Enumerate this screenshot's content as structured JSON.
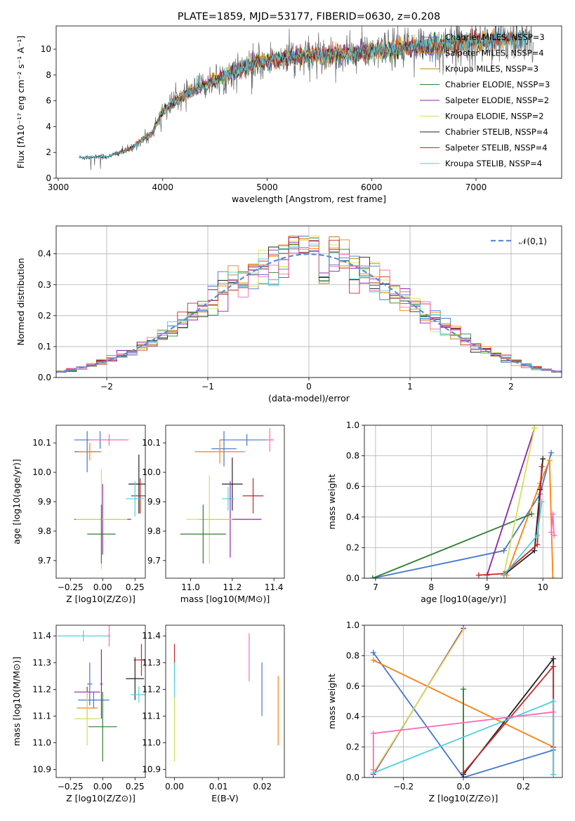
{
  "colors": {
    "Chabrier MILES": "#4477cc",
    "Salpeter MILES": "#ff7f0e",
    "Kroupa MILES": "#b8860b",
    "Chabrier ELODIE": "#2e7d32",
    "Salpeter ELODIE": "#8e24aa",
    "Kroupa ELODIE": "#d4e157",
    "Chabrier STELIB": "#222222",
    "Salpeter STELIB": "#c62828",
    "Kroupa STELIB": "#4dd0e1",
    "data": "#666666",
    "normal": "#5b8bd9",
    "pink": "#ff69b4"
  },
  "chart_data": [
    {
      "id": "spectrum",
      "type": "line",
      "title": "PLATE=1859, MJD=53177, FIBERID=0630, z=0.208",
      "xlabel": "wavelength [Angstrom, rest frame]",
      "ylabel": "Flux [fλ10⁻¹⁷ erg cm⁻² s⁻¹ A⁻¹]",
      "xlim": [
        2980,
        7820
      ],
      "ylim": [
        0,
        11.8
      ],
      "xticks": [
        3000,
        4000,
        5000,
        6000,
        7000
      ],
      "yticks": [
        0,
        2,
        4,
        6,
        8,
        10
      ],
      "legend_position": "upper right",
      "legend": [
        "Chabrier MILES, NSSP=3",
        "Salpeter MILES, NSSP=4",
        "Kroupa MILES, NSSP=3",
        "Chabrier ELODIE, NSSP=3",
        "Salpeter ELODIE, NSSP=2",
        "Kroupa ELODIE, NSSP=2",
        "Chabrier STELIB, NSSP=4",
        "Salpeter STELIB, NSSP=4",
        "Kroupa STELIB, NSSP=4"
      ],
      "continuum": {
        "x": [
          3200,
          3500,
          3550,
          3700,
          3800,
          3900,
          4000,
          4100,
          4300,
          4500,
          4700,
          4900,
          5100,
          5300,
          5500,
          5700,
          5900,
          6100,
          6300,
          6500,
          6700,
          6900,
          7100,
          7300,
          7500
        ],
        "y": [
          1.6,
          1.7,
          1.9,
          2.3,
          3.0,
          3.5,
          5.2,
          5.9,
          6.8,
          7.6,
          8.3,
          8.9,
          9.3,
          9.4,
          9.5,
          9.6,
          9.7,
          9.9,
          10.1,
          10.3,
          10.4,
          10.5,
          10.7,
          10.8,
          10.9
        ]
      }
    },
    {
      "id": "residuals",
      "type": "histogram",
      "xlabel": "(data-model)/error",
      "ylabel": "Normed distribution",
      "xlim": [
        -2.5,
        2.5
      ],
      "ylim": [
        0,
        0.49
      ],
      "xticks": [
        -2,
        -1,
        0,
        1,
        2
      ],
      "yticks": [
        0.0,
        0.1,
        0.2,
        0.3,
        0.4
      ],
      "grid": true,
      "legend": [
        "𝒩(0,1)"
      ],
      "bin_width": 0.1,
      "reference_curve": "standard normal pdf"
    },
    {
      "id": "age_vs_Z",
      "type": "scatter",
      "xlabel": "Z [log10(Z/Z⊙)]",
      "ylabel": "age  [log10(age/yr)]",
      "xlim": [
        -0.36,
        0.33
      ],
      "ylim": [
        9.64,
        10.16
      ],
      "xticks": [
        -0.25,
        0.0,
        0.25
      ],
      "xticklabels": [
        "−0.25",
        "0.00",
        "0.25"
      ],
      "yticks": [
        9.7,
        9.8,
        9.9,
        10.0,
        10.1
      ],
      "points": [
        {
          "x": -0.12,
          "y": 10.07,
          "xerr": 0.1,
          "yerr": 0.07,
          "model": "Chabrier MILES"
        },
        {
          "x": -0.1,
          "y": 10.07,
          "xerr": 0.09,
          "yerr": 0.03,
          "model": "Salpeter MILES"
        },
        {
          "x": -0.02,
          "y": 10.11,
          "xerr": 0.2,
          "yerr": 0.03,
          "model": "Chabrier MILES"
        },
        {
          "x": 0.05,
          "y": 10.11,
          "xerr": 0.15,
          "yerr": 0.02,
          "model": "pink"
        },
        {
          "x": 0.28,
          "y": 9.96,
          "xerr": 0.08,
          "yerr": 0.1,
          "model": "Chabrier STELIB"
        },
        {
          "x": 0.29,
          "y": 9.92,
          "xerr": 0.07,
          "yerr": 0.06,
          "model": "Salpeter STELIB"
        },
        {
          "x": 0.25,
          "y": 9.91,
          "xerr": 0.07,
          "yerr": 0.06,
          "model": "Kroupa STELIB"
        },
        {
          "x": 0.0,
          "y": 9.84,
          "xerr": 0.22,
          "yerr": 0.12,
          "model": "Salpeter ELODIE"
        },
        {
          "x": -0.01,
          "y": 9.84,
          "xerr": 0.2,
          "yerr": 0.17,
          "model": "Kroupa ELODIE"
        },
        {
          "x": -0.01,
          "y": 9.79,
          "xerr": 0.11,
          "yerr": 0.1,
          "model": "Chabrier ELODIE"
        }
      ]
    },
    {
      "id": "age_vs_mass",
      "type": "scatter",
      "xlabel": "mass [log10(M/M⊙)]",
      "xlim": [
        10.88,
        11.45
      ],
      "ylim": [
        9.64,
        10.16
      ],
      "xticks": [
        11.0,
        11.2,
        11.4
      ],
      "xticklabels": [
        "11.0",
        "11.2",
        "11.4"
      ],
      "yticks": [
        9.7,
        9.8,
        9.9,
        10.0,
        10.1
      ],
      "points": [
        {
          "x": 11.16,
          "y": 10.08,
          "xerr": 0.06,
          "yerr": 0.06,
          "model": "Chabrier MILES"
        },
        {
          "x": 11.14,
          "y": 10.07,
          "xerr": 0.12,
          "yerr": 0.04,
          "model": "Salpeter MILES"
        },
        {
          "x": 11.27,
          "y": 10.11,
          "xerr": 0.13,
          "yerr": 0.02,
          "model": "Chabrier MILES"
        },
        {
          "x": 11.38,
          "y": 10.11,
          "xerr": 0.02,
          "yerr": 0.04,
          "model": "pink"
        },
        {
          "x": 11.2,
          "y": 9.96,
          "xerr": 0.05,
          "yerr": 0.09,
          "model": "Chabrier STELIB"
        },
        {
          "x": 11.3,
          "y": 9.92,
          "xerr": 0.05,
          "yerr": 0.06,
          "model": "Salpeter STELIB"
        },
        {
          "x": 11.18,
          "y": 9.91,
          "xerr": 0.03,
          "yerr": 0.04,
          "model": "Kroupa STELIB"
        },
        {
          "x": 11.19,
          "y": 9.84,
          "xerr": 0.15,
          "yerr": 0.13,
          "model": "Salpeter ELODIE"
        },
        {
          "x": 11.09,
          "y": 9.84,
          "xerr": 0.11,
          "yerr": 0.15,
          "model": "Kroupa ELODIE"
        },
        {
          "x": 11.06,
          "y": 9.79,
          "xerr": 0.11,
          "yerr": 0.1,
          "model": "Chabrier ELODIE"
        }
      ]
    },
    {
      "id": "massweight_vs_age",
      "type": "line",
      "xlabel": "age  [log10(age/yr)]",
      "ylabel": "mass weight",
      "xlim": [
        6.8,
        10.35
      ],
      "ylim": [
        0,
        1.0
      ],
      "xticks": [
        7,
        8,
        9,
        10
      ],
      "yticks": [
        0.0,
        0.2,
        0.4,
        0.6,
        0.8,
        1.0
      ],
      "grid": true,
      "series": [
        {
          "model": "Chabrier MILES",
          "x": [
            6.95,
            9.3,
            9.95,
            10.15
          ],
          "y": [
            0.0,
            0.18,
            0.55,
            0.82
          ]
        },
        {
          "model": "Salpeter MILES",
          "x": [
            9.35,
            9.95,
            10.12,
            10.18
          ],
          "y": [
            0.02,
            0.62,
            0.77,
            0.0
          ]
        },
        {
          "model": "Chabrier ELODIE",
          "x": [
            6.95,
            9.8
          ],
          "y": [
            0.0,
            0.42
          ]
        },
        {
          "model": "Salpeter ELODIE",
          "x": [
            9.0,
            9.85
          ],
          "y": [
            0.02,
            0.98
          ]
        },
        {
          "model": "Kroupa ELODIE",
          "x": [
            9.3,
            9.85
          ],
          "y": [
            0.02,
            0.98
          ]
        },
        {
          "model": "Chabrier STELIB",
          "x": [
            9.3,
            9.85,
            9.95,
            10.0
          ],
          "y": [
            0.02,
            0.18,
            0.58,
            0.78
          ]
        },
        {
          "model": "Salpeter STELIB",
          "x": [
            8.85,
            9.3,
            9.9,
            9.98
          ],
          "y": [
            0.02,
            0.03,
            0.22,
            0.73
          ]
        },
        {
          "model": "Kroupa STELIB",
          "x": [
            9.3,
            9.9,
            9.98
          ],
          "y": [
            0.02,
            0.28,
            0.5
          ]
        },
        {
          "model": "pink",
          "x": [
            10.15,
            10.18,
            10.2
          ],
          "y": [
            0.3,
            0.42,
            0.28
          ]
        }
      ]
    },
    {
      "id": "mass_vs_Z",
      "type": "scatter",
      "xlabel": "Z [log10(Z/Z⊙)]",
      "ylabel": "mass [log10(M/M⊙)]",
      "xlim": [
        -0.36,
        0.33
      ],
      "ylim": [
        10.87,
        11.44
      ],
      "xticks": [
        -0.25,
        0.0,
        0.25
      ],
      "xticklabels": [
        "−0.25",
        "0.00",
        "0.25"
      ],
      "yticks": [
        10.9,
        11.0,
        11.1,
        11.2,
        11.3,
        11.4
      ],
      "points": [
        {
          "x": -0.15,
          "y": 11.4,
          "xerr": 0.2,
          "yerr": 0.02,
          "model": "Kroupa STELIB"
        },
        {
          "x": 0.05,
          "y": 11.4,
          "xerr": 0.01,
          "yerr": 0.04,
          "model": "pink"
        },
        {
          "x": 0.3,
          "y": 11.31,
          "xerr": 0.06,
          "yerr": 0.06,
          "model": "Salpeter STELIB"
        },
        {
          "x": 0.25,
          "y": 11.24,
          "xerr": 0.07,
          "yerr": 0.08,
          "model": "Chabrier STELIB"
        },
        {
          "x": -0.1,
          "y": 11.22,
          "xerr": 0.02,
          "yerr": 0.08,
          "model": "Chabrier MILES"
        },
        {
          "x": -0.01,
          "y": 11.22,
          "xerr": 0.01,
          "yerr": 0.13,
          "model": "Salpeter ELODIE"
        },
        {
          "x": -0.12,
          "y": 11.19,
          "xerr": 0.1,
          "yerr": 0.02,
          "model": "Salpeter ELODIE"
        },
        {
          "x": 0.28,
          "y": 11.18,
          "xerr": 0.06,
          "yerr": 0.03,
          "model": "Kroupa STELIB"
        },
        {
          "x": -0.07,
          "y": 11.16,
          "xerr": 0.12,
          "yerr": 0.03,
          "model": "Chabrier MILES"
        },
        {
          "x": -0.12,
          "y": 11.13,
          "xerr": 0.08,
          "yerr": 0.04,
          "model": "Salpeter MILES"
        },
        {
          "x": -0.12,
          "y": 11.09,
          "xerr": 0.1,
          "yerr": 0.1,
          "model": "Kroupa ELODIE"
        },
        {
          "x": 0.0,
          "y": 11.06,
          "xerr": 0.11,
          "yerr": 0.13,
          "model": "Chabrier ELODIE"
        }
      ]
    },
    {
      "id": "mass_vs_ebv",
      "type": "scatter",
      "xlabel": "E(B-V)",
      "xlim": [
        -0.002,
        0.025
      ],
      "ylim": [
        10.87,
        11.44
      ],
      "xticks": [
        0.0,
        0.01,
        0.02
      ],
      "xticklabels": [
        "0.00",
        "0.01",
        "0.02"
      ],
      "yticks": [
        10.9,
        11.0,
        11.1,
        11.2,
        11.3,
        11.4
      ],
      "points": [
        {
          "x": 0.0,
          "y": 11.3,
          "yerr": 0.07,
          "model": "Salpeter STELIB"
        },
        {
          "x": 0.0,
          "y": 11.2,
          "yerr": 0.1,
          "model": "Kroupa STELIB"
        },
        {
          "x": 0.0,
          "y": 11.05,
          "yerr": 0.12,
          "model": "Kroupa ELODIE"
        },
        {
          "x": 0.017,
          "y": 11.32,
          "yerr": 0.09,
          "model": "pink"
        },
        {
          "x": 0.0199,
          "y": 11.2,
          "yerr": 0.1,
          "model": "Chabrier MILES"
        },
        {
          "x": 0.0236,
          "y": 11.12,
          "yerr": 0.13,
          "model": "Salpeter MILES"
        }
      ]
    },
    {
      "id": "massweight_vs_Z",
      "type": "line",
      "xlabel": "Z [log10(Z/Z⊙)]",
      "ylabel": "mass weight",
      "xlim": [
        -0.33,
        0.33
      ],
      "ylim": [
        0,
        1.0
      ],
      "xticks": [
        -0.2,
        0.0,
        0.2
      ],
      "xticklabels": [
        "−0.2",
        "0.0",
        "0.2"
      ],
      "yticks": [
        0.0,
        0.2,
        0.4,
        0.6,
        0.8,
        1.0
      ],
      "grid": true,
      "series": [
        {
          "model": "Chabrier MILES",
          "x": [
            -0.3,
            0.0,
            0.3
          ],
          "y": [
            0.82,
            0.0,
            0.18
          ]
        },
        {
          "model": "Salpeter MILES",
          "x": [
            -0.3,
            0.3
          ],
          "y": [
            0.77,
            0.2
          ]
        },
        {
          "model": "Salpeter ELODIE",
          "x": [
            -0.3,
            0.0
          ],
          "y": [
            0.02,
            0.98
          ]
        },
        {
          "model": "Kroupa ELODIE",
          "x": [
            -0.3,
            0.0
          ],
          "y": [
            0.03,
            0.97
          ]
        },
        {
          "model": "Chabrier ELODIE",
          "x": [
            0.0,
            0.0
          ],
          "y": [
            0.0,
            0.58
          ]
        },
        {
          "model": "Chabrier STELIB",
          "x": [
            0.0,
            0.3,
            0.3
          ],
          "y": [
            0.02,
            0.78,
            0.02
          ]
        },
        {
          "model": "Salpeter STELIB",
          "x": [
            0.0,
            0.3,
            0.3
          ],
          "y": [
            0.03,
            0.73,
            0.2
          ]
        },
        {
          "model": "Kroupa STELIB",
          "x": [
            -0.3,
            0.3,
            0.3
          ],
          "y": [
            0.03,
            0.5,
            0.02
          ]
        },
        {
          "model": "pink",
          "x": [
            -0.3,
            -0.3,
            0.3
          ],
          "y": [
            0.05,
            0.29,
            0.43
          ]
        }
      ]
    }
  ]
}
